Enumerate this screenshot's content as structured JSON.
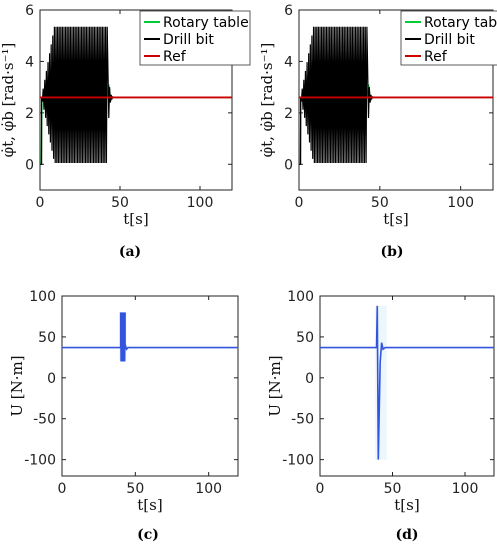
{
  "panels": [
    {
      "caption": "(a)",
      "chart_data": {
        "type": "line",
        "xlabel": "t[s]",
        "ylabel": "φ̇t, φ̇b [rad·s⁻¹]",
        "xlim": [
          0,
          120
        ],
        "ylim": [
          -1,
          6
        ],
        "xticks": [
          "0",
          "50",
          "100"
        ],
        "yticks": [
          "0",
          "2",
          "4",
          "6"
        ],
        "legend": [
          "Rotary table",
          "Drill bit",
          "Ref"
        ],
        "legend_position": "top-right",
        "colors": [
          "#00cc33",
          "#000000",
          "#cc0000"
        ],
        "ref_value": 2.6,
        "stick_slip": {
          "start_s": 1,
          "end_s": 42,
          "peak": 5.35,
          "trough": 0.05,
          "period_s": 1.0,
          "settle_s": 46
        }
      }
    },
    {
      "caption": "(b)",
      "chart_data": {
        "type": "line",
        "xlabel": "t[s]",
        "ylabel": "φ̇t, φ̇b [rad·s⁻¹]",
        "xlim": [
          0,
          120
        ],
        "ylim": [
          -1,
          6
        ],
        "xticks": [
          "0",
          "50",
          "100"
        ],
        "yticks": [
          "0",
          "2",
          "4",
          "6"
        ],
        "legend": [
          "Rotary table",
          "Drill bit",
          "Ref"
        ],
        "legend_position": "top-right",
        "colors": [
          "#00cc33",
          "#000000",
          "#cc0000"
        ],
        "ref_value": 2.6,
        "stick_slip": {
          "start_s": 1,
          "end_s": 42,
          "peak": 5.35,
          "trough": 0.05,
          "period_s": 1.0,
          "settle_s": 46
        }
      }
    },
    {
      "caption": "(c)",
      "chart_data": {
        "type": "line",
        "xlabel": "t[s]",
        "ylabel": "U [N·m]",
        "xlim": [
          0,
          120
        ],
        "ylim": [
          -120,
          100
        ],
        "xticks": [
          "0",
          "50",
          "100"
        ],
        "yticks": [
          "-100",
          "-50",
          "0",
          "50",
          "100"
        ],
        "colors": [
          "#3355dd"
        ],
        "baseline": 37,
        "burst": {
          "start_s": 40,
          "end_s": 43,
          "max": 80,
          "min": 20
        }
      }
    },
    {
      "caption": "(d)",
      "chart_data": {
        "type": "line",
        "xlabel": "t[s]",
        "ylabel": "U [N·m]",
        "xlim": [
          0,
          120
        ],
        "ylim": [
          -120,
          100
        ],
        "xticks": [
          "0",
          "50",
          "100"
        ],
        "yticks": [
          "-100",
          "-50",
          "0",
          "50",
          "100"
        ],
        "colors": [
          "#3355dd"
        ],
        "baseline": 37,
        "burst": {
          "start_s": 39,
          "end_s": 45,
          "max": 88,
          "min": -100
        }
      }
    }
  ]
}
